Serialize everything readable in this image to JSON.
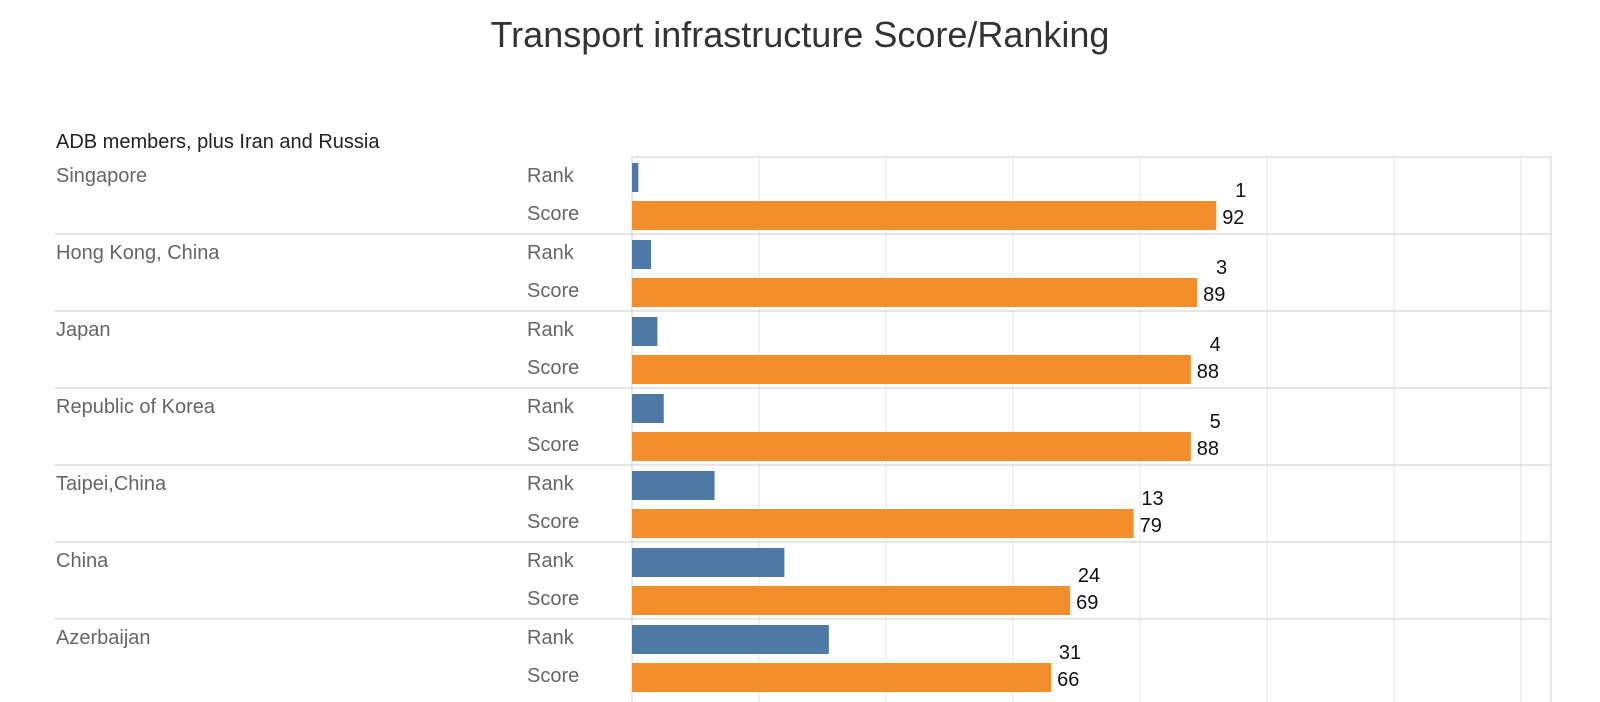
{
  "title": "Transport infrastructure Score/Ranking",
  "subtitle": "ADB members, plus Iran and Russia",
  "colors": {
    "rank": "#4e79a7",
    "score": "#f28e2b",
    "grid": "#e6e6e6",
    "divider": "#cccccc"
  },
  "chart_data": {
    "type": "bar",
    "orientation": "horizontal",
    "title": "Transport infrastructure Score/Ranking",
    "subtitle": "ADB members, plus Iran and Russia",
    "categories": [
      "Singapore",
      "Hong Kong, China",
      "Japan",
      "Republic of Korea",
      "Taipei,China",
      "China",
      "Azerbaijan"
    ],
    "measures": [
      "Rank",
      "Score"
    ],
    "series": [
      {
        "name": "Rank",
        "values": [
          1,
          3,
          4,
          5,
          13,
          24,
          31
        ],
        "color": "#4e79a7"
      },
      {
        "name": "Score",
        "values": [
          92,
          89,
          88,
          88,
          79,
          69,
          66
        ],
        "color": "#f28e2b"
      }
    ],
    "xlim": [
      0,
      145
    ],
    "grid": true,
    "data_labels": true
  }
}
